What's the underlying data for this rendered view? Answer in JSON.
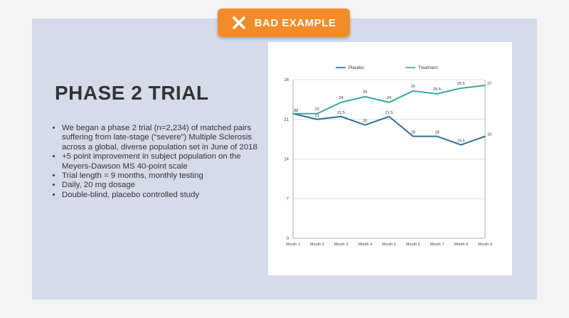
{
  "badge": {
    "label": "BAD EXAMPLE",
    "icon": "x-icon",
    "color": "#f28c28"
  },
  "slide": {
    "title": "PHASE 2 TRIAL",
    "bullets": [
      "We began a phase 2 trial (n=2,234) of matched pairs suffering from late-stage (“severe”) Multiple Sclerosis across a global, diverse population set in June of 2018",
      "+5 point improvement in subject population on the Meyers-Dawson MS 40-point scale",
      "Trial length = 9 months, monthly testing",
      "Daily, 20 mg dosage",
      "Double-blind, placebo controlled study"
    ]
  },
  "chart_data": {
    "type": "line",
    "title": "",
    "xlabel": "",
    "ylabel": "",
    "categories": [
      "Month 1",
      "Month 2",
      "Month 3",
      "Month 4",
      "Month 5",
      "Month 6",
      "Month 7",
      "Month 8",
      "Month 9"
    ],
    "yticks": [
      0,
      7,
      14,
      21,
      28
    ],
    "ylim": [
      0,
      28
    ],
    "grid": true,
    "legend_position": "top",
    "series": [
      {
        "name": "Placebo",
        "color": "#2f6f93",
        "values": [
          22,
          21,
          21.5,
          20,
          21.5,
          18,
          18,
          16.5,
          18
        ]
      },
      {
        "name": "Treatment",
        "color": "#3aa89b",
        "values": [
          22,
          22,
          24,
          25,
          24,
          26,
          25.5,
          26.5,
          27
        ]
      }
    ]
  }
}
